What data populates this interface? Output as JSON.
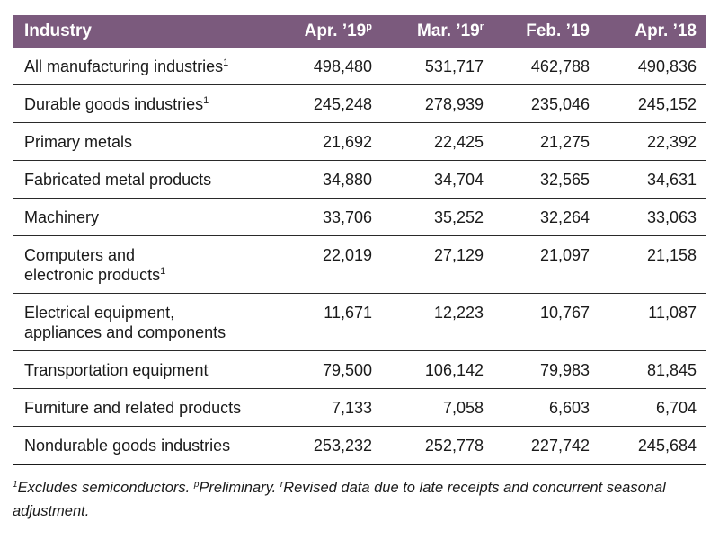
{
  "table": {
    "headers": {
      "industry": "Industry",
      "col1": "Apr. ’19",
      "col1_mark": "p",
      "col2": "Mar. ’19",
      "col2_mark": "r",
      "col3": "Feb. ’19",
      "col4": "Apr. ’18"
    },
    "rows": [
      {
        "industry": "All manufacturing industries",
        "mark": "1",
        "values": [
          "498,480",
          "531,717",
          "462,788",
          "490,836"
        ]
      },
      {
        "industry": "Durable goods industries",
        "mark": "1",
        "values": [
          "245,248",
          "278,939",
          "235,046",
          "245,152"
        ]
      },
      {
        "industry": "Primary metals",
        "mark": "",
        "values": [
          "21,692",
          "22,425",
          "21,275",
          "22,392"
        ]
      },
      {
        "industry": "Fabricated metal products",
        "mark": "",
        "values": [
          "34,880",
          "34,704",
          "32,565",
          "34,631"
        ]
      },
      {
        "industry": "Machinery",
        "mark": "",
        "values": [
          "33,706",
          "35,252",
          "32,264",
          "33,063"
        ]
      },
      {
        "industry": "Computers and",
        "industry_line2": "electronic products",
        "mark": "1",
        "values": [
          "22,019",
          "27,129",
          "21,097",
          "21,158"
        ]
      },
      {
        "industry": "Electrical equipment,",
        "industry_line2": "appliances and components",
        "mark": "",
        "values": [
          "11,671",
          "12,223",
          "10,767",
          "11,087"
        ]
      },
      {
        "industry": "Transportation equipment",
        "mark": "",
        "values": [
          "79,500",
          "106,142",
          "79,983",
          "81,845"
        ]
      },
      {
        "industry": "Furniture and related products",
        "mark": "",
        "values": [
          "7,133",
          "7,058",
          "6,603",
          "6,704"
        ]
      },
      {
        "industry": "Nondurable goods industries",
        "mark": "",
        "values": [
          "253,232",
          "252,778",
          "227,742",
          "245,684"
        ]
      }
    ]
  },
  "footnote": {
    "mark1": "1",
    "text1": "Excludes semiconductors. ",
    "mark2": "p",
    "text2": "Preliminary. ",
    "mark3": "r",
    "text3": "Revised data due to late receipts and concurrent seasonal adjustment."
  },
  "colors": {
    "header_bg": "#7b5a7d",
    "header_text": "#ffffff",
    "rule": "#2a2a2a"
  }
}
